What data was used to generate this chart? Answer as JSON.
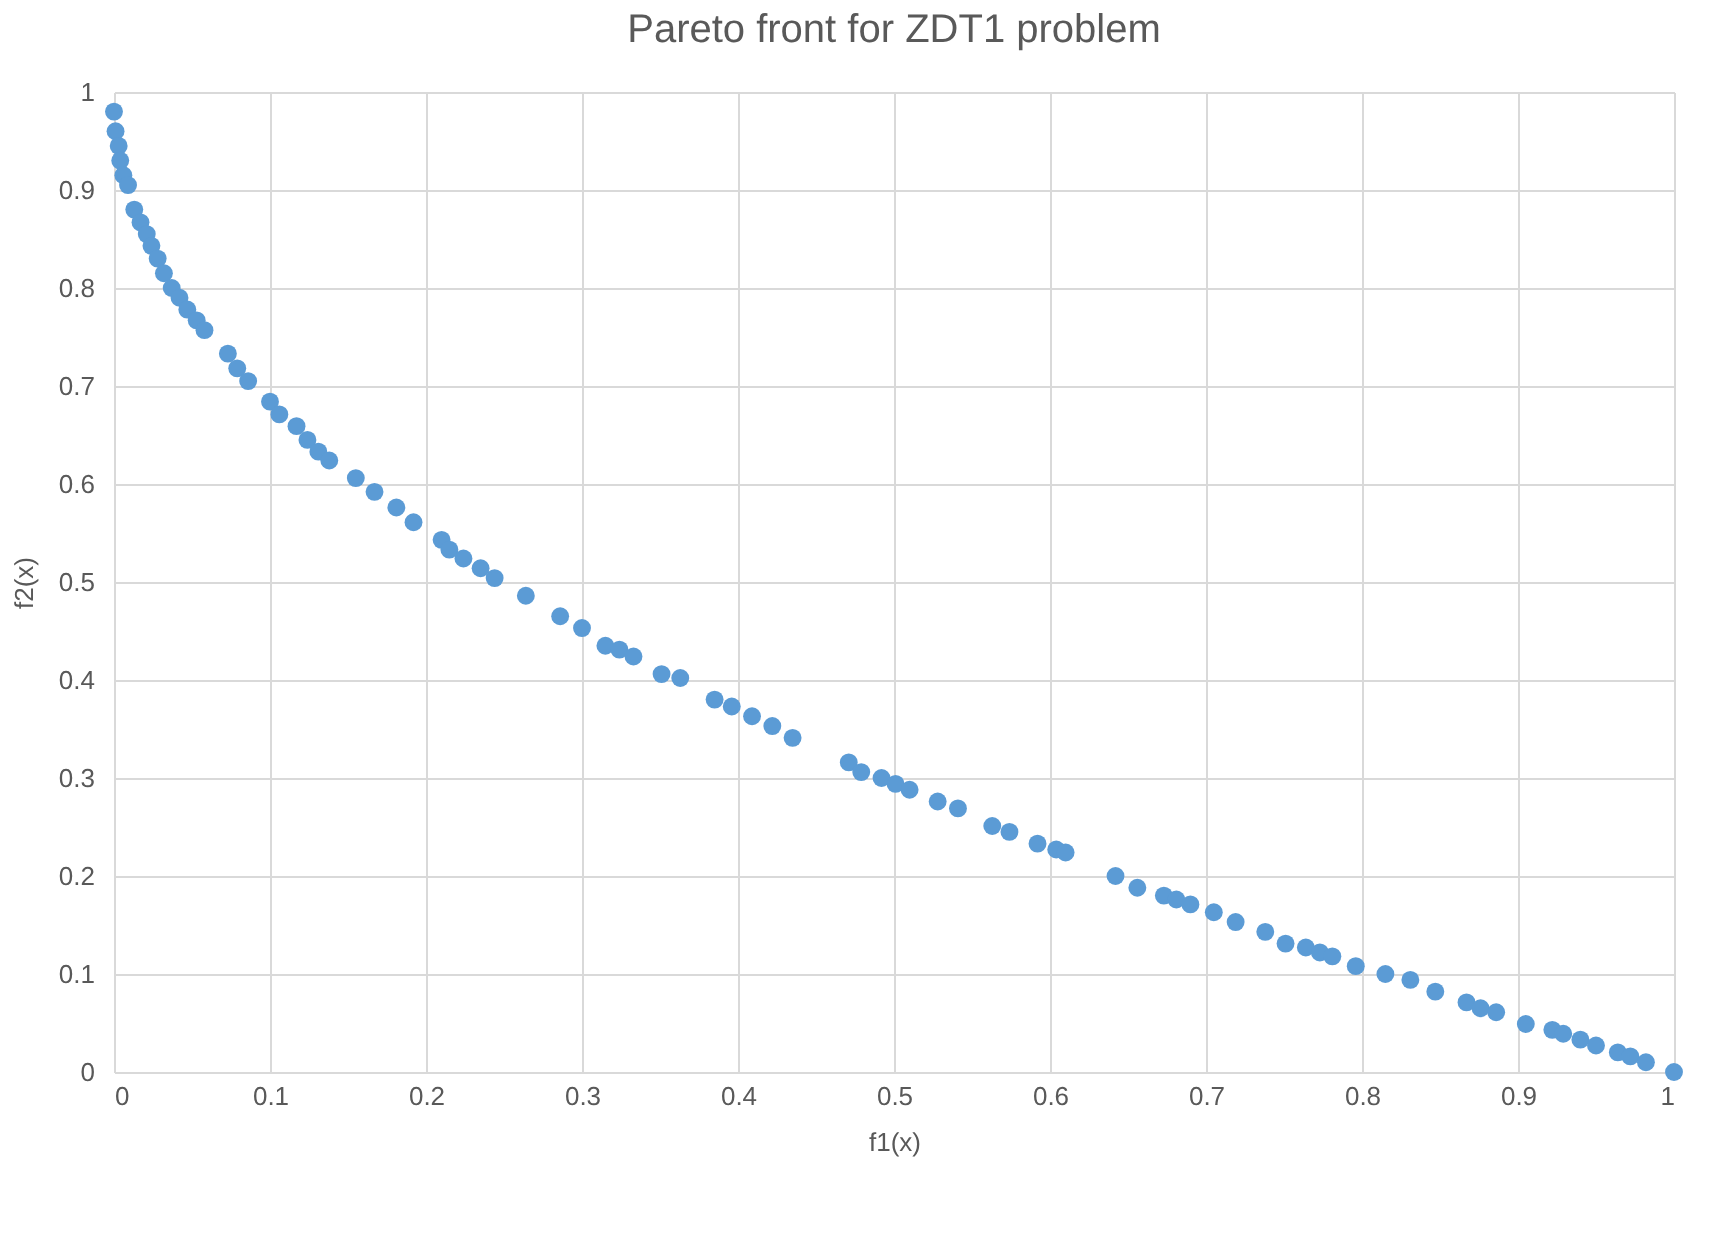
{
  "chart_data": {
    "type": "scatter",
    "title": "Pareto front for ZDT1 problem",
    "xlabel": "f1(x)",
    "ylabel": "f2(x)",
    "x": [
      0,
      0.001,
      0.003,
      0.004,
      0.006,
      0.009,
      0.013,
      0.017,
      0.021,
      0.024,
      0.028,
      0.032,
      0.037,
      0.042,
      0.047,
      0.053,
      0.058,
      0.073,
      0.079,
      0.086,
      0.1,
      0.106,
      0.117,
      0.124,
      0.131,
      0.138,
      0.155,
      0.167,
      0.181,
      0.192,
      0.21,
      0.215,
      0.224,
      0.235,
      0.244,
      0.264,
      0.286,
      0.3,
      0.315,
      0.324,
      0.333,
      0.351,
      0.363,
      0.385,
      0.396,
      0.409,
      0.422,
      0.435,
      0.471,
      0.479,
      0.492,
      0.501,
      0.51,
      0.528,
      0.541,
      0.563,
      0.574,
      0.592,
      0.604,
      0.61,
      0.642,
      0.656,
      0.673,
      0.681,
      0.69,
      0.705,
      0.719,
      0.738,
      0.751,
      0.764,
      0.773,
      0.781,
      0.796,
      0.815,
      0.831,
      0.847,
      0.867,
      0.876,
      0.886,
      0.905,
      0.922,
      0.929,
      0.94,
      0.95,
      0.964,
      0.972,
      0.982,
      1
    ],
    "series": [
      {
        "color": "#5b9bd5",
        "values": [
          0.98,
          0.96,
          0.945,
          0.93,
          0.915,
          0.905,
          0.88,
          0.867,
          0.855,
          0.843,
          0.83,
          0.815,
          0.8,
          0.79,
          0.778,
          0.767,
          0.757,
          0.733,
          0.718,
          0.705,
          0.684,
          0.671,
          0.659,
          0.645,
          0.633,
          0.624,
          0.606,
          0.592,
          0.576,
          0.561,
          0.543,
          0.533,
          0.524,
          0.514,
          0.504,
          0.486,
          0.465,
          0.453,
          0.435,
          0.431,
          0.424,
          0.406,
          0.402,
          0.38,
          0.373,
          0.363,
          0.353,
          0.341,
          0.316,
          0.306,
          0.3,
          0.294,
          0.288,
          0.276,
          0.269,
          0.251,
          0.245,
          0.233,
          0.227,
          0.224,
          0.2,
          0.188,
          0.18,
          0.176,
          0.171,
          0.163,
          0.153,
          0.143,
          0.131,
          0.127,
          0.122,
          0.118,
          0.108,
          0.1,
          0.094,
          0.082,
          0.071,
          0.065,
          0.061,
          0.049,
          0.043,
          0.039,
          0.033,
          0.027,
          0.02,
          0.016,
          0.01,
          0
        ]
      }
    ],
    "xlim": [
      0,
      1
    ],
    "xticks": [
      0,
      0.1,
      0.2,
      0.3,
      0.4,
      0.5,
      0.6,
      0.7,
      0.8,
      0.9,
      1
    ],
    "ylim": [
      0,
      1
    ],
    "yticks": [
      0,
      0.1,
      0.2,
      0.3,
      0.4,
      0.5,
      0.6,
      0.7,
      0.8,
      0.9,
      1
    ],
    "grid": true,
    "marker": "circle"
  }
}
